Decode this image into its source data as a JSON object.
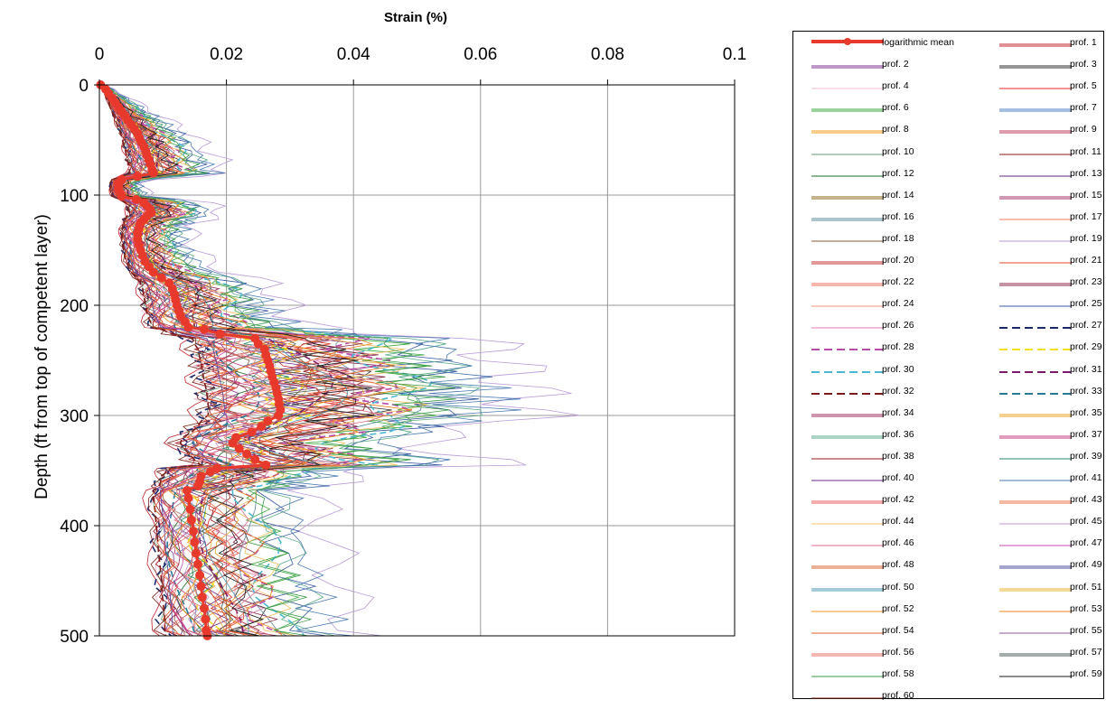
{
  "chart_data": {
    "type": "line",
    "title": "",
    "xlabel": "Strain (%)",
    "ylabel": "Depth (ft from top of competent layer)",
    "xlim": [
      0,
      0.1
    ],
    "ylim": [
      0,
      500
    ],
    "y_inverted": true,
    "x_axis_position": "top",
    "xticks": [
      "0",
      "0.02",
      "0.04",
      "0.06",
      "0.08",
      "0.1"
    ],
    "yticks": [
      "0",
      "100",
      "200",
      "300",
      "400",
      "500"
    ],
    "grid": true,
    "legend_position": "right",
    "mean_series": {
      "name": "logarithmic mean",
      "color": "#e8392d",
      "points": [
        [
          0.0002,
          0
        ],
        [
          0.001,
          4
        ],
        [
          0.0015,
          8
        ],
        [
          0.002,
          12
        ],
        [
          0.0025,
          16
        ],
        [
          0.003,
          20
        ],
        [
          0.0035,
          24
        ],
        [
          0.004,
          28
        ],
        [
          0.0045,
          32
        ],
        [
          0.005,
          36
        ],
        [
          0.0055,
          40
        ],
        [
          0.006,
          44
        ],
        [
          0.0063,
          48
        ],
        [
          0.0066,
          52
        ],
        [
          0.007,
          56
        ],
        [
          0.0073,
          60
        ],
        [
          0.0075,
          64
        ],
        [
          0.0078,
          68
        ],
        [
          0.008,
          72
        ],
        [
          0.0083,
          77
        ],
        [
          0.0085,
          80
        ],
        [
          0.006,
          83
        ],
        [
          0.0035,
          86
        ],
        [
          0.003,
          89
        ],
        [
          0.003,
          92
        ],
        [
          0.003,
          95
        ],
        [
          0.0033,
          98
        ],
        [
          0.0035,
          101
        ],
        [
          0.0058,
          104
        ],
        [
          0.007,
          107
        ],
        [
          0.0075,
          110
        ],
        [
          0.008,
          113
        ],
        [
          0.0082,
          116
        ],
        [
          0.0075,
          119
        ],
        [
          0.007,
          122
        ],
        [
          0.0065,
          125
        ],
        [
          0.0063,
          128
        ],
        [
          0.0062,
          131
        ],
        [
          0.006,
          135
        ],
        [
          0.006,
          140
        ],
        [
          0.0062,
          145
        ],
        [
          0.0065,
          150
        ],
        [
          0.0068,
          155
        ],
        [
          0.0072,
          160
        ],
        [
          0.0078,
          165
        ],
        [
          0.0085,
          170
        ],
        [
          0.0098,
          175
        ],
        [
          0.011,
          180
        ],
        [
          0.0115,
          185
        ],
        [
          0.0118,
          190
        ],
        [
          0.012,
          195
        ],
        [
          0.0122,
          200
        ],
        [
          0.0125,
          205
        ],
        [
          0.0128,
          210
        ],
        [
          0.0135,
          215
        ],
        [
          0.014,
          220
        ],
        [
          0.0165,
          222
        ],
        [
          0.019,
          226
        ],
        [
          0.0245,
          230
        ],
        [
          0.025,
          235
        ],
        [
          0.026,
          240
        ],
        [
          0.0262,
          245
        ],
        [
          0.0265,
          250
        ],
        [
          0.0268,
          255
        ],
        [
          0.027,
          260
        ],
        [
          0.0272,
          265
        ],
        [
          0.0275,
          270
        ],
        [
          0.0278,
          275
        ],
        [
          0.028,
          280
        ],
        [
          0.0282,
          285
        ],
        [
          0.0283,
          290
        ],
        [
          0.0285,
          295
        ],
        [
          0.0282,
          300
        ],
        [
          0.0265,
          305
        ],
        [
          0.0255,
          310
        ],
        [
          0.024,
          315
        ],
        [
          0.0215,
          320
        ],
        [
          0.021,
          325
        ],
        [
          0.022,
          330
        ],
        [
          0.0232,
          335
        ],
        [
          0.0245,
          340
        ],
        [
          0.0262,
          345
        ],
        [
          0.0185,
          348
        ],
        [
          0.0175,
          351
        ],
        [
          0.016,
          355
        ],
        [
          0.0158,
          360
        ],
        [
          0.0155,
          364
        ],
        [
          0.0138,
          368
        ],
        [
          0.014,
          375
        ],
        [
          0.0143,
          385
        ],
        [
          0.0145,
          395
        ],
        [
          0.0148,
          405
        ],
        [
          0.015,
          415
        ],
        [
          0.0152,
          425
        ],
        [
          0.0155,
          435
        ],
        [
          0.0158,
          445
        ],
        [
          0.016,
          455
        ],
        [
          0.0162,
          465
        ],
        [
          0.0165,
          475
        ],
        [
          0.0167,
          485
        ],
        [
          0.0168,
          495
        ],
        [
          0.017,
          500
        ]
      ]
    },
    "profile_series": [
      {
        "name": "prof. 1",
        "color": "#c0202a",
        "dash": "solid",
        "double": true
      },
      {
        "name": "prof. 2",
        "color": "#7b2f90",
        "dash": "solid",
        "double": true
      },
      {
        "name": "prof. 3",
        "color": "#2b2b2b",
        "dash": "solid",
        "double": true
      },
      {
        "name": "prof. 4",
        "color": "#f2b8d4",
        "dash": "solid",
        "double": false
      },
      {
        "name": "prof. 5",
        "color": "#e0241b",
        "dash": "solid",
        "double": false
      },
      {
        "name": "prof. 6",
        "color": "#3aa63a",
        "dash": "solid",
        "double": true
      },
      {
        "name": "prof. 7",
        "color": "#4a7fc1",
        "dash": "solid",
        "double": true
      },
      {
        "name": "prof. 8",
        "color": "#f29a1a",
        "dash": "solid",
        "double": true
      },
      {
        "name": "prof. 9",
        "color": "#b83a5a",
        "dash": "solid",
        "double": true
      },
      {
        "name": "prof. 10",
        "color": "#6b9a7b",
        "dash": "solid",
        "double": false
      },
      {
        "name": "prof. 11",
        "color": "#8b1a1a",
        "dash": "solid",
        "double": false
      },
      {
        "name": "prof. 12",
        "color": "#1f6b2a",
        "dash": "solid",
        "double": false
      },
      {
        "name": "prof. 13",
        "color": "#5a2a7a",
        "dash": "solid",
        "double": false
      },
      {
        "name": "prof. 14",
        "color": "#8a6a1a",
        "dash": "solid",
        "double": true
      },
      {
        "name": "prof. 15",
        "color": "#a0306a",
        "dash": "solid",
        "double": true
      },
      {
        "name": "prof. 16",
        "color": "#5a8a9a",
        "dash": "solid",
        "double": true
      },
      {
        "name": "prof. 17",
        "color": "#f07a5a",
        "dash": "solid",
        "double": false
      },
      {
        "name": "prof. 18",
        "color": "#8a5a3a",
        "dash": "solid",
        "double": false
      },
      {
        "name": "prof. 19",
        "color": "#b89ad8",
        "dash": "solid",
        "double": false
      },
      {
        "name": "prof. 20",
        "color": "#c03030",
        "dash": "solid",
        "double": true
      },
      {
        "name": "prof. 21",
        "color": "#e04a2a",
        "dash": "solid",
        "double": false
      },
      {
        "name": "prof. 22",
        "color": "#e8705a",
        "dash": "solid",
        "double": true
      },
      {
        "name": "prof. 23",
        "color": "#8a2a4a",
        "dash": "solid",
        "double": true
      },
      {
        "name": "prof. 24",
        "color": "#f0907a",
        "dash": "solid",
        "double": false
      },
      {
        "name": "prof. 25",
        "color": "#3a5aa0",
        "dash": "solid",
        "double": false
      },
      {
        "name": "prof. 26",
        "color": "#d87ab0",
        "dash": "solid",
        "double": false
      },
      {
        "name": "prof. 27",
        "color": "#1a2a6a",
        "dash": "dashed",
        "double": false
      },
      {
        "name": "prof. 28",
        "color": "#b84aa8",
        "dash": "dashed",
        "double": false
      },
      {
        "name": "prof. 29",
        "color": "#f0e020",
        "dash": "dashed",
        "double": false
      },
      {
        "name": "prof. 30",
        "color": "#4ab8d0",
        "dash": "dashed",
        "double": false
      },
      {
        "name": "prof. 31",
        "color": "#7a1a6a",
        "dash": "dashed",
        "double": false
      },
      {
        "name": "prof. 32",
        "color": "#7a1a1a",
        "dash": "dashed",
        "double": false
      },
      {
        "name": "prof. 33",
        "color": "#2a7a9a",
        "dash": "dashed",
        "double": false
      },
      {
        "name": "prof. 34",
        "color": "#a02a5a",
        "dash": "solid",
        "double": true
      },
      {
        "name": "prof. 35",
        "color": "#e8a020",
        "dash": "solid",
        "double": true
      },
      {
        "name": "prof. 36",
        "color": "#5aaa8a",
        "dash": "solid",
        "double": true
      },
      {
        "name": "prof. 37",
        "color": "#c03a7a",
        "dash": "solid",
        "double": true
      },
      {
        "name": "prof. 38",
        "color": "#9a1a1a",
        "dash": "solid",
        "double": false
      },
      {
        "name": "prof. 39",
        "color": "#2a8a6a",
        "dash": "solid",
        "double": false
      },
      {
        "name": "prof. 40",
        "color": "#6a2a8a",
        "dash": "solid",
        "double": false
      },
      {
        "name": "prof. 41",
        "color": "#4a7ab0",
        "dash": "solid",
        "double": false
      },
      {
        "name": "prof. 42",
        "color": "#e85a5a",
        "dash": "solid",
        "double": true
      },
      {
        "name": "prof. 43",
        "color": "#e8704a",
        "dash": "solid",
        "double": true
      },
      {
        "name": "prof. 44",
        "color": "#f0c060",
        "dash": "solid",
        "double": false
      },
      {
        "name": "prof. 45",
        "color": "#c09ad0",
        "dash": "solid",
        "double": false
      },
      {
        "name": "prof. 46",
        "color": "#e06a8a",
        "dash": "solid",
        "double": false
      },
      {
        "name": "prof. 47",
        "color": "#c84ab0",
        "dash": "solid",
        "double": false
      },
      {
        "name": "prof. 48",
        "color": "#d8602a",
        "dash": "solid",
        "double": true
      },
      {
        "name": "prof. 49",
        "color": "#4a4a9a",
        "dash": "solid",
        "double": true
      },
      {
        "name": "prof. 50",
        "color": "#4a9ab0",
        "dash": "solid",
        "double": true
      },
      {
        "name": "prof. 51",
        "color": "#e8b030",
        "dash": "solid",
        "double": true
      },
      {
        "name": "prof. 52",
        "color": "#f0901a",
        "dash": "solid",
        "double": false
      },
      {
        "name": "prof. 53",
        "color": "#e8801a",
        "dash": "solid",
        "double": false
      },
      {
        "name": "prof. 54",
        "color": "#e0602a",
        "dash": "solid",
        "double": false
      },
      {
        "name": "prof. 55",
        "color": "#8a5a9a",
        "dash": "solid",
        "double": false
      },
      {
        "name": "prof. 56",
        "color": "#e8706a",
        "dash": "solid",
        "double": true
      },
      {
        "name": "prof. 57",
        "color": "#4a5a5a",
        "dash": "solid",
        "double": true
      },
      {
        "name": "prof. 58",
        "color": "#3a9a4a",
        "dash": "solid",
        "double": false
      },
      {
        "name": "prof. 59",
        "color": "#1a1a1a",
        "dash": "solid",
        "double": false
      },
      {
        "name": "prof. 60",
        "color": "#7a2a1a",
        "dash": "solid",
        "double": false
      }
    ]
  }
}
